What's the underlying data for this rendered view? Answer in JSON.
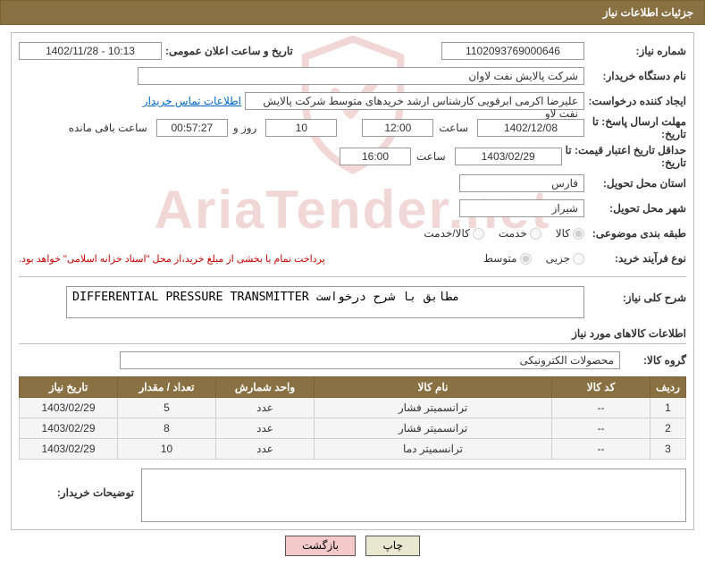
{
  "title": "جزئیات اطلاعات نیاز",
  "labels": {
    "need_no": "شماره نیاز:",
    "announce_dt": "تاریخ و ساعت اعلان عمومی:",
    "buyer_org": "نام دستگاه خریدار:",
    "creator": "ایجاد کننده درخواست:",
    "deadline_resp": "مهلت ارسال پاسخ:",
    "to": "تا",
    "date": "تاریخ:",
    "time": "ساعت",
    "days_and": "روز و",
    "remaining": "ساعت باقی مانده",
    "min_valid": "حداقل تاریخ اعتبار قیمت:",
    "delivery_province": "استان محل تحویل:",
    "delivery_city": "شهر محل تحویل:",
    "subject_class": "طبقه بندی موضوعی:",
    "purchase_type": "نوع فرآیند خرید:",
    "need_desc": "شرح کلی نیاز:",
    "items_info": "اطلاعات کالاهای مورد نیاز",
    "item_group": "گروه کالا:",
    "buyer_notes": "توضیحات خریدار:",
    "contact_link": "اطلاعات تماس خریدار"
  },
  "values": {
    "need_no": "1102093769000646",
    "announce_dt": "1402/11/28 - 10:13",
    "buyer_org": "شرکت پالایش نفت لاوان",
    "creator": "علیرضا اکرمی ابرقویی کارشناس ارشد خریدهای متوسط شرکت پالایش نفت لاو",
    "deadline_date": "1402/12/08",
    "deadline_time": "12:00",
    "remaining_days": "10",
    "remaining_hms": "00:57:27",
    "valid_date": "1403/02/29",
    "valid_time": "16:00",
    "province": "فارس",
    "city": "شیراز",
    "payment_note": "پرداخت تمام یا بخشی از مبلغ خرید،از محل \"اسناد خزانه اسلامی\" خواهد بود.",
    "need_desc": "DIFFERENTIAL PRESSURE TRANSMITTER مطابق با شرح درخواست",
    "item_group": "محصولات الکترونیکی",
    "watermark": "AriaTender.net"
  },
  "radios": {
    "subject": [
      "کالا",
      "خدمت",
      "کالا/خدمت"
    ],
    "subject_selected": 0,
    "purchase": [
      "جزیی",
      "متوسط"
    ],
    "purchase_selected": 1
  },
  "table": {
    "headers": [
      "ردیف",
      "کد کالا",
      "نام کالا",
      "واحد شمارش",
      "تعداد / مقدار",
      "تاریخ نیاز"
    ],
    "rows": [
      [
        "1",
        "--",
        "ترانسمیتر فشار",
        "عدد",
        "5",
        "1403/02/29"
      ],
      [
        "2",
        "--",
        "ترانسمیتر فشار",
        "عدد",
        "8",
        "1403/02/29"
      ],
      [
        "3",
        "--",
        "ترانسمیتر دما",
        "عدد",
        "10",
        "1403/02/29"
      ]
    ],
    "col_widths": [
      "40px",
      "110px",
      "auto",
      "110px",
      "110px",
      "110px"
    ]
  },
  "buttons": {
    "print": "چاپ",
    "back": "بازگشت"
  }
}
